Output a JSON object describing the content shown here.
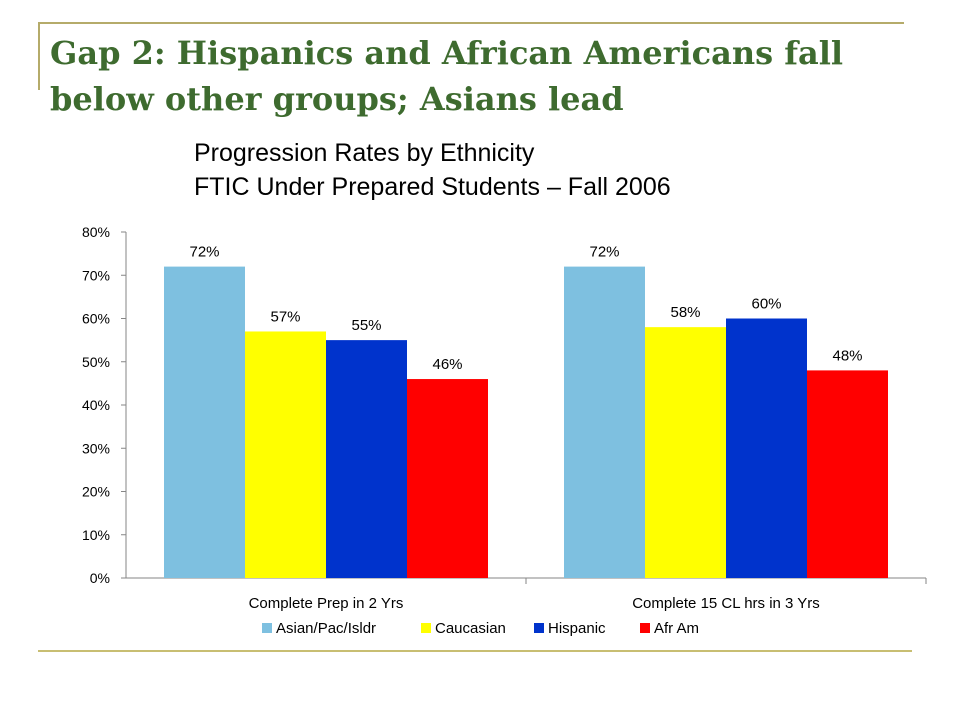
{
  "slide": {
    "title_line1": "Gap 2: Hispanics and African Americans fall",
    "title_line2": "below other groups; Asians lead"
  },
  "chart_data": {
    "type": "bar",
    "title": "Progression Rates by Ethnicity",
    "subtitle": "FTIC Under Prepared Students – Fall 2006",
    "categories": [
      "Complete Prep in 2 Yrs",
      "Complete 15 CL hrs in 3 Yrs"
    ],
    "series": [
      {
        "name": "Asian/Pac/Isldr",
        "values": [
          72,
          72
        ],
        "labels": [
          "72%",
          "72%"
        ],
        "color": "#7ec0e0"
      },
      {
        "name": "Caucasian",
        "values": [
          57,
          58
        ],
        "labels": [
          "57%",
          "58%"
        ],
        "color": "#ffff00"
      },
      {
        "name": "Hispanic",
        "values": [
          55,
          60
        ],
        "labels": [
          "55%",
          "60%"
        ],
        "color": "#0033cc"
      },
      {
        "name": "Afr Am",
        "values": [
          46,
          48
        ],
        "labels": [
          "46%",
          "48%"
        ],
        "color": "#ff0000"
      }
    ],
    "yticks": [
      "0%",
      "10%",
      "20%",
      "30%",
      "40%",
      "50%",
      "60%",
      "70%",
      "80%"
    ],
    "ylim": [
      0,
      80
    ],
    "xlabel": "",
    "ylabel": "",
    "grid": false,
    "legend": "bottom"
  }
}
